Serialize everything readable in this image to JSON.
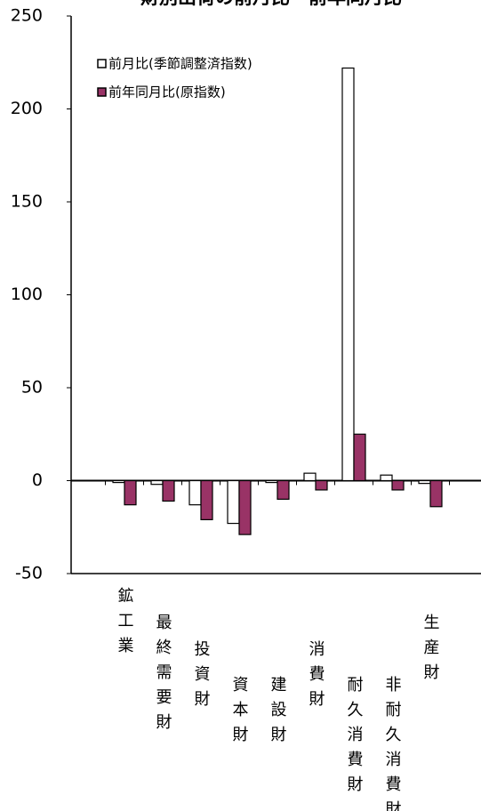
{
  "chart_data": {
    "type": "bar",
    "title": "財別出荷の前月比・前年同月比",
    "categories": [
      "鉱工業",
      "最終需要財",
      "投資財",
      "資本財",
      "建設財",
      "消費財",
      "耐久消費財",
      "非耐久消費財",
      "生産財"
    ],
    "series": [
      {
        "name": "前月比(季節調整済指数)",
        "color": "#ffffff",
        "values": [
          -1,
          -2,
          -13,
          -23,
          -1,
          4,
          222,
          3,
          -1.5
        ]
      },
      {
        "name": "前年同月比(原指数)",
        "color": "#993366",
        "values": [
          -13,
          -11,
          -21,
          -29,
          -10,
          -5,
          25,
          -5,
          -14
        ]
      }
    ],
    "ylim": [
      -50,
      250
    ],
    "yticks": [
      -50,
      0,
      50,
      100,
      150,
      200,
      250
    ],
    "grid": false
  }
}
